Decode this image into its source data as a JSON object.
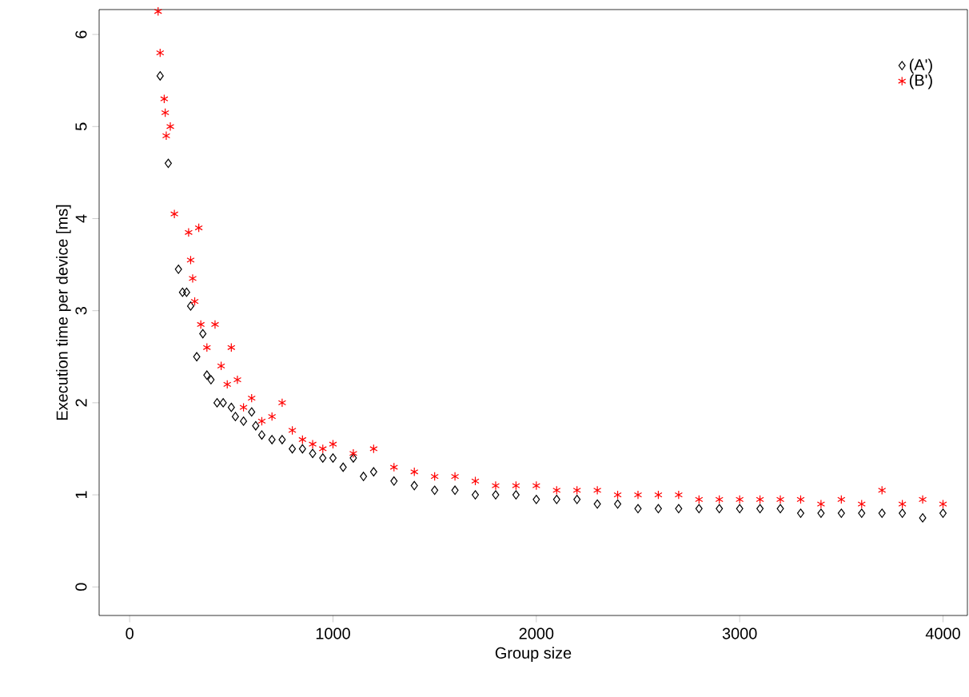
{
  "chart_data": {
    "type": "scatter",
    "xlabel": "Group size",
    "ylabel": "Execution time per device [ms]",
    "xlim": [
      -150,
      4120
    ],
    "ylim": [
      -0.31,
      6.27
    ],
    "xticks": [
      0,
      1000,
      2000,
      3000,
      4000
    ],
    "yticks": [
      0,
      1,
      2,
      3,
      4,
      5,
      6
    ],
    "legend": "top right",
    "grid": false,
    "series": [
      {
        "name": "(A')",
        "color": "#000000",
        "marker": "diamond",
        "x": [
          150,
          190,
          240,
          260,
          280,
          300,
          330,
          360,
          380,
          400,
          430,
          460,
          500,
          520,
          560,
          600,
          620,
          650,
          700,
          750,
          800,
          850,
          900,
          950,
          1000,
          1050,
          1100,
          1150,
          1200,
          1300,
          1400,
          1500,
          1600,
          1700,
          1800,
          1900,
          2000,
          2100,
          2200,
          2300,
          2400,
          2500,
          2600,
          2700,
          2800,
          2900,
          3000,
          3100,
          3200,
          3300,
          3400,
          3500,
          3600,
          3700,
          3800,
          3900,
          4000
        ],
        "values": [
          5.55,
          4.6,
          3.45,
          3.2,
          3.2,
          3.05,
          2.5,
          2.75,
          2.3,
          2.25,
          2.0,
          2.0,
          1.95,
          1.85,
          1.8,
          1.9,
          1.75,
          1.65,
          1.6,
          1.6,
          1.5,
          1.5,
          1.45,
          1.4,
          1.4,
          1.3,
          1.4,
          1.2,
          1.25,
          1.15,
          1.1,
          1.05,
          1.05,
          1.0,
          1.0,
          1.0,
          0.95,
          0.95,
          0.95,
          0.9,
          0.9,
          0.85,
          0.85,
          0.85,
          0.85,
          0.85,
          0.85,
          0.85,
          0.85,
          0.8,
          0.8,
          0.8,
          0.8,
          0.8,
          0.8,
          0.75,
          0.8
        ]
      },
      {
        "name": "(B')",
        "color": "#ff0000",
        "marker": "cross",
        "x": [
          140,
          150,
          170,
          175,
          180,
          200,
          220,
          290,
          300,
          310,
          320,
          340,
          350,
          380,
          420,
          450,
          480,
          500,
          530,
          560,
          600,
          650,
          700,
          750,
          800,
          850,
          900,
          950,
          1000,
          1100,
          1200,
          1300,
          1400,
          1500,
          1600,
          1700,
          1800,
          1900,
          2000,
          2100,
          2200,
          2300,
          2400,
          2500,
          2600,
          2700,
          2800,
          2900,
          3000,
          3100,
          3200,
          3300,
          3400,
          3500,
          3600,
          3700,
          3800,
          3900,
          4000
        ],
        "values": [
          6.25,
          5.8,
          5.3,
          5.15,
          4.9,
          5.0,
          4.05,
          3.85,
          3.55,
          3.35,
          3.1,
          3.9,
          2.85,
          2.6,
          2.85,
          2.4,
          2.2,
          2.6,
          2.25,
          1.95,
          2.05,
          1.8,
          1.85,
          2.0,
          1.7,
          1.6,
          1.55,
          1.5,
          1.55,
          1.45,
          1.5,
          1.3,
          1.25,
          1.2,
          1.2,
          1.15,
          1.1,
          1.1,
          1.1,
          1.05,
          1.05,
          1.05,
          1.0,
          1.0,
          1.0,
          1.0,
          0.95,
          0.95,
          0.95,
          0.95,
          0.95,
          0.95,
          0.9,
          0.95,
          0.9,
          1.05,
          0.9,
          0.95,
          0.9
        ]
      }
    ]
  }
}
